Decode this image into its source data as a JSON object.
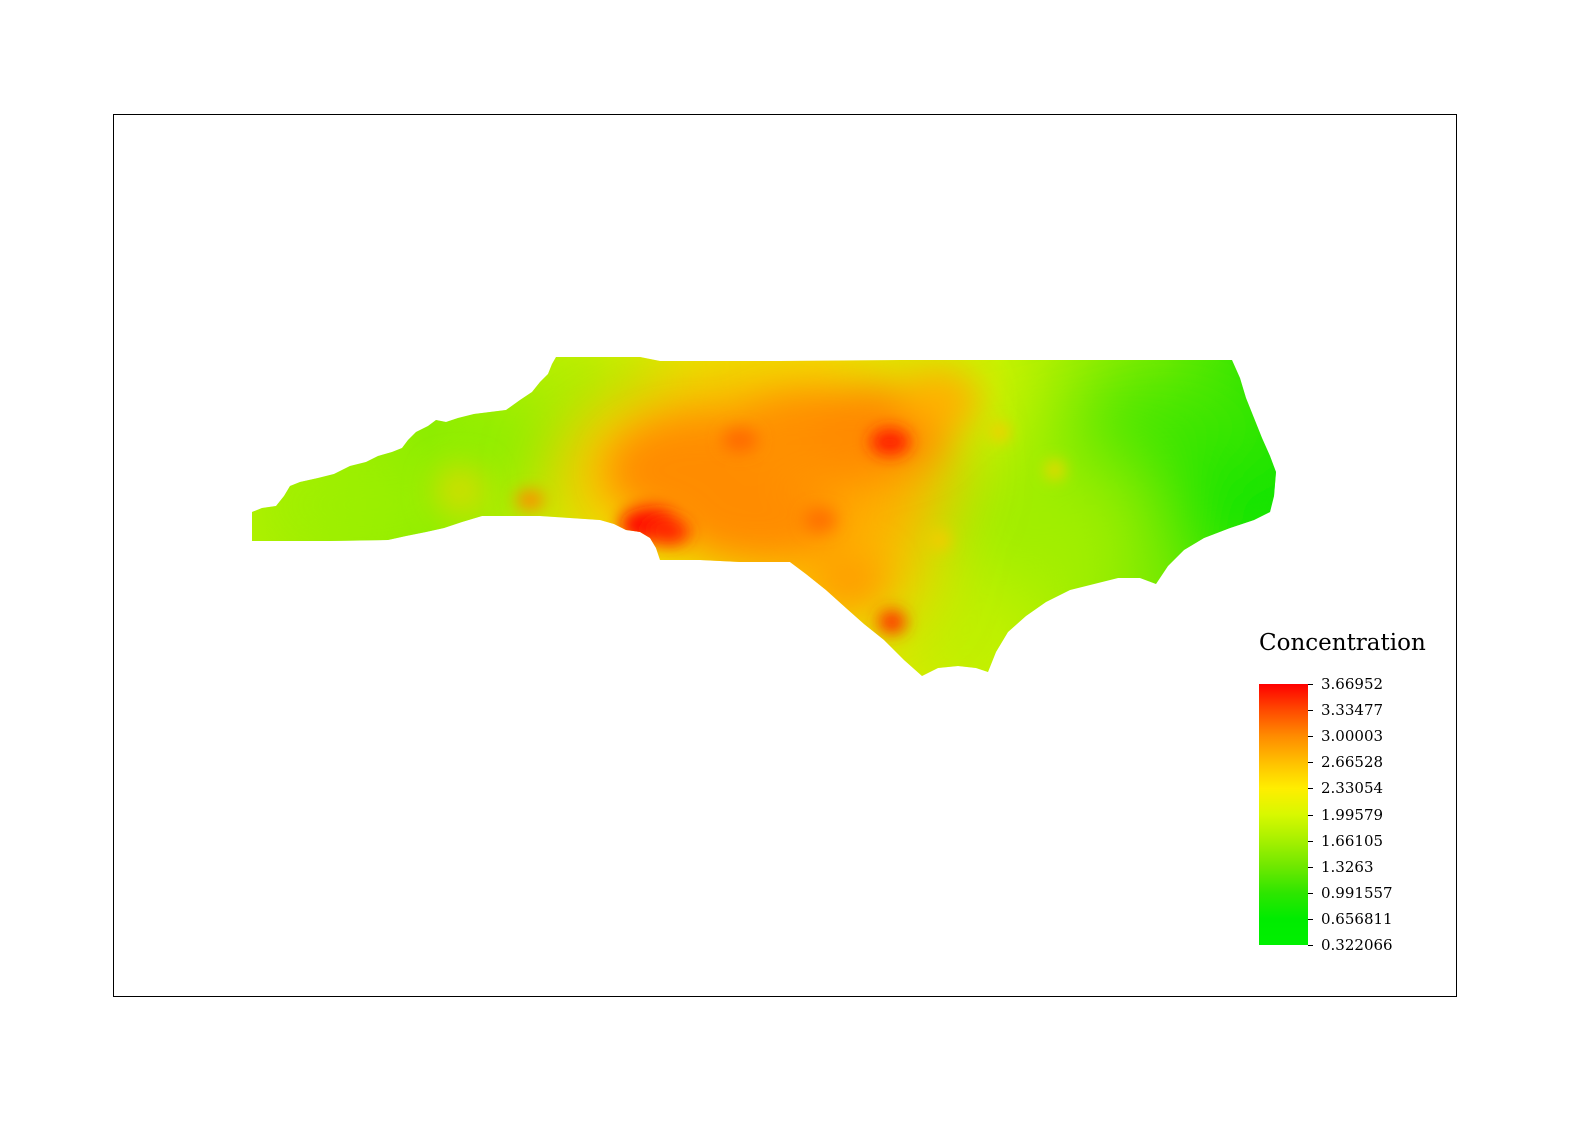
{
  "map": {
    "legend": {
      "title": "Concentration",
      "labels": [
        "3.66952",
        "3.33477",
        "3.00003",
        "2.66528",
        "2.33054",
        "1.99579",
        "1.66105",
        "1.3263",
        "0.991557",
        "0.656811",
        "0.322066"
      ],
      "ramp_colors": [
        "#ff0000",
        "#ff4a00",
        "#ff8c00",
        "#ffc000",
        "#ffee00",
        "#d8f800",
        "#a6f000",
        "#6ee800",
        "#2ee600",
        "#00ec00",
        "#00f000"
      ]
    },
    "surface_colors": {
      "low": "#00e800",
      "mid_low": "#8ef000",
      "mid": "#e6f200",
      "mid_high": "#ffb000",
      "high": "#ff7a00",
      "peak": "#ff1a00"
    }
  }
}
